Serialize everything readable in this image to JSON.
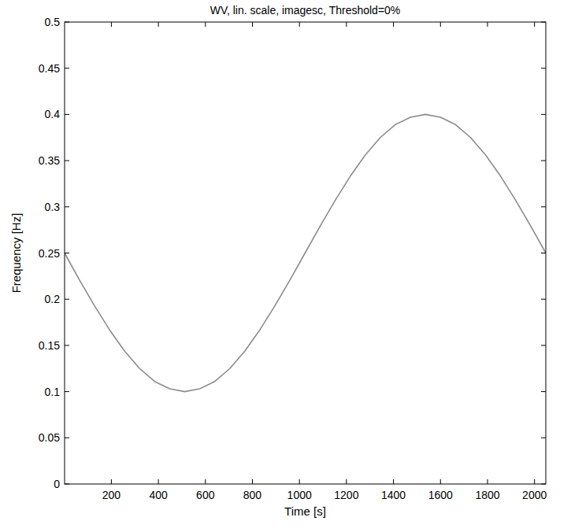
{
  "chart_data": {
    "type": "line",
    "title": "WV, lin. scale, imagesc, Threshold=0%",
    "x_label": "Time [s]",
    "y_label": "Frequency [Hz]",
    "x": [
      1,
      64,
      128,
      192,
      256,
      320,
      384,
      448,
      512,
      576,
      640,
      704,
      768,
      832,
      896,
      960,
      1024,
      1088,
      1152,
      1216,
      1280,
      1344,
      1408,
      1472,
      1536,
      1600,
      1664,
      1728,
      1792,
      1856,
      1920,
      1984,
      2048
    ],
    "values": [
      0.25,
      0.221,
      0.193,
      0.167,
      0.144,
      0.125,
      0.111,
      0.103,
      0.1,
      0.103,
      0.111,
      0.125,
      0.144,
      0.167,
      0.193,
      0.221,
      0.25,
      0.279,
      0.307,
      0.333,
      0.356,
      0.375,
      0.389,
      0.397,
      0.4,
      0.397,
      0.389,
      0.375,
      0.356,
      0.333,
      0.307,
      0.279,
      0.25
    ],
    "color": "#8c8c8c",
    "xlim": [
      1,
      2048
    ],
    "ylim": [
      0,
      0.5
    ],
    "xticks": [
      200,
      400,
      600,
      800,
      1000,
      1200,
      1400,
      1600,
      1800,
      2000
    ],
    "yticks": [
      0,
      0.05,
      0.1,
      0.15,
      0.2,
      0.25,
      0.3,
      0.35,
      0.4,
      0.45,
      0.5
    ],
    "grid": false
  }
}
